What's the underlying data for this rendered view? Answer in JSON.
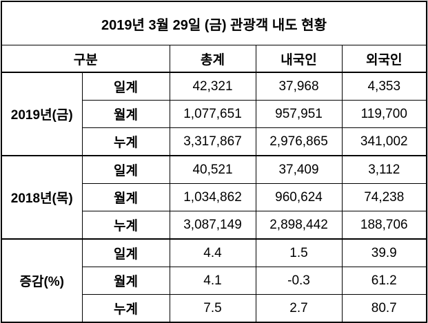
{
  "title": "2019년 3월 29일 (금) 관광객 내도 현황",
  "header": [
    "구분",
    "총계",
    "내국인",
    "외국인"
  ],
  "groups": [
    {
      "label": "2019년(금)",
      "rows": [
        {
          "label": "일계",
          "values": [
            "42,321",
            "37,968",
            "4,353"
          ]
        },
        {
          "label": "월계",
          "values": [
            "1,077,651",
            "957,951",
            "119,700"
          ]
        },
        {
          "label": "누계",
          "values": [
            "3,317,867",
            "2,976,865",
            "341,002"
          ]
        }
      ]
    },
    {
      "label": "2018년(목)",
      "rows": [
        {
          "label": "일계",
          "values": [
            "40,521",
            "37,409",
            "3,112"
          ]
        },
        {
          "label": "월계",
          "values": [
            "1,034,862",
            "960,624",
            "74,238"
          ]
        },
        {
          "label": "누계",
          "values": [
            "3,087,149",
            "2,898,442",
            "188,706"
          ]
        }
      ]
    },
    {
      "label": "증감(%)",
      "rows": [
        {
          "label": "일계",
          "values": [
            "4.4",
            "1.5",
            "39.9"
          ]
        },
        {
          "label": "월계",
          "values": [
            "4.1",
            "-0.3",
            "61.2"
          ]
        },
        {
          "label": "누계",
          "values": [
            "7.5",
            "2.7",
            "80.7"
          ]
        }
      ]
    }
  ]
}
